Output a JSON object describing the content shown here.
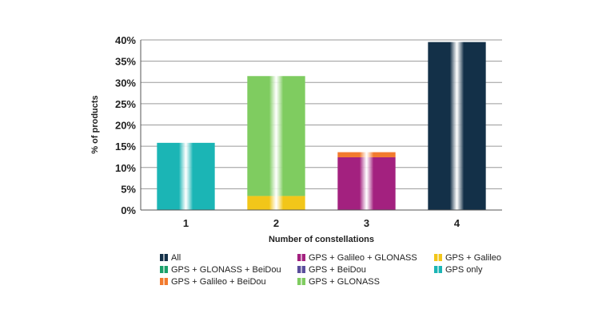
{
  "chart_data": {
    "type": "bar",
    "stacked": true,
    "xlabel": "Number of constellations",
    "ylabel": "% of products",
    "ylim": [
      0,
      40
    ],
    "yticks": [
      "0%",
      "5%",
      "10%",
      "15%",
      "20%",
      "25%",
      "30%",
      "35%",
      "40%"
    ],
    "grid": true,
    "legend_position": "bottom",
    "categories": [
      "1",
      "2",
      "3",
      "4"
    ],
    "series": [
      {
        "name": "GPS only",
        "color": "#1bb5b5",
        "values": [
          15.8,
          0,
          0,
          0
        ]
      },
      {
        "name": "GPS + Galileo",
        "color": "#f2c619",
        "values": [
          0,
          3.3,
          0,
          0
        ]
      },
      {
        "name": "GPS + GLONASS",
        "color": "#7fcc60",
        "values": [
          0,
          28.2,
          0,
          0
        ]
      },
      {
        "name": "GPS + BeiDou",
        "color": "#5a4e9c",
        "values": [
          0,
          0,
          0,
          0
        ]
      },
      {
        "name": "GPS + Galileo + GLONASS",
        "color": "#a3217f",
        "values": [
          0,
          0,
          12.4,
          0
        ]
      },
      {
        "name": "GPS + Galileo + BeiDou",
        "color": "#f27a2e",
        "values": [
          0,
          0,
          1.2,
          0
        ]
      },
      {
        "name": "GPS + GLONASS + BeiDou",
        "color": "#1aa06a",
        "values": [
          0,
          0,
          0,
          0
        ]
      },
      {
        "name": "All",
        "color": "#133048",
        "values": [
          0,
          0,
          0,
          39.5
        ]
      }
    ],
    "legend_order": [
      [
        "All",
        "GPS + Galileo + GLONASS",
        "GPS + Galileo"
      ],
      [
        "GPS + GLONASS + BeiDou",
        "GPS + BeiDou",
        "GPS only"
      ],
      [
        "GPS + Galileo + BeiDou",
        "GPS + GLONASS"
      ]
    ]
  }
}
